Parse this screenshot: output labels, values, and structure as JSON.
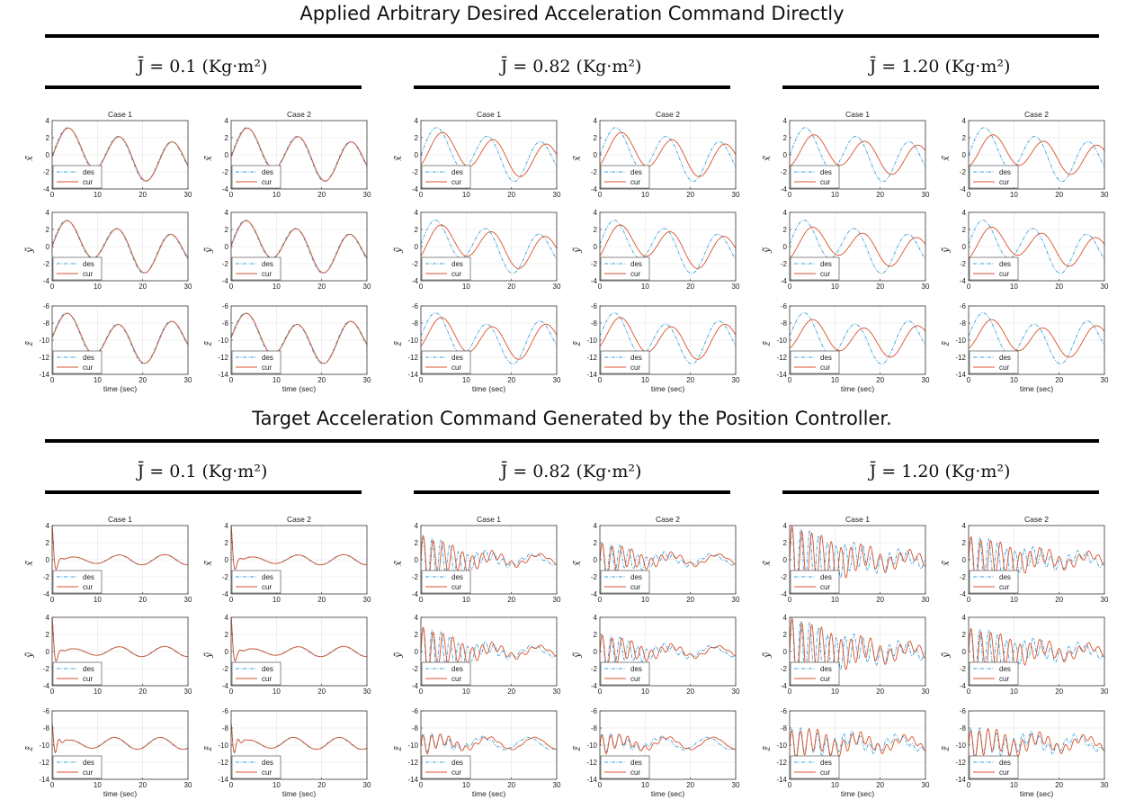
{
  "sections": [
    {
      "title": "Applied Arbitrary Desired Acceleration Command Directly",
      "mode": "direct",
      "groups": [
        {
          "label": "J̄ = 0.1 (Kg·m²)",
          "J": 0.1
        },
        {
          "label": "J̄ = 0.82 (Kg·m²)",
          "J": 0.82
        },
        {
          "label": "J̄ = 1.20 (Kg·m²)",
          "J": 1.2
        }
      ]
    },
    {
      "title": "Target Acceleration Command Generated by the Position Controller.",
      "mode": "position",
      "groups": [
        {
          "label": "J̄ = 0.1 (Kg·m²)",
          "J": 0.1
        },
        {
          "label": "J̄ = 0.82 (Kg·m²)",
          "J": 0.82
        },
        {
          "label": "J̄ = 1.20 (Kg·m²)",
          "J": 1.2
        }
      ]
    }
  ],
  "case_titles": [
    "Case 1",
    "Case 2"
  ],
  "row_ylabels": [
    "x̃̈",
    "ỹ̈",
    "z̃̈"
  ],
  "xlabel": "time (sec)",
  "legend": [
    "des",
    "cur"
  ],
  "colors": {
    "des": "#3b9fd9",
    "cur": "#d9532b",
    "grid": "#e3e3e3",
    "axis": "#3a3a3a"
  },
  "chart_data": {
    "type": "line",
    "description_of_grid": "2 sections × 3 inertia groups × 2 cases × 3 axes (x, y, z) small multiples",
    "xlim": [
      0,
      30
    ],
    "xticks": [
      0,
      10,
      20,
      30
    ],
    "ylim_xy": [
      -4,
      4
    ],
    "yticks_xy": [
      4,
      2,
      0,
      -2,
      -4
    ],
    "ylim_z": [
      -14,
      -6
    ],
    "yticks_z": [
      -6,
      -8,
      -10,
      -12,
      -14
    ],
    "series": [
      "des",
      "cur"
    ]
  }
}
